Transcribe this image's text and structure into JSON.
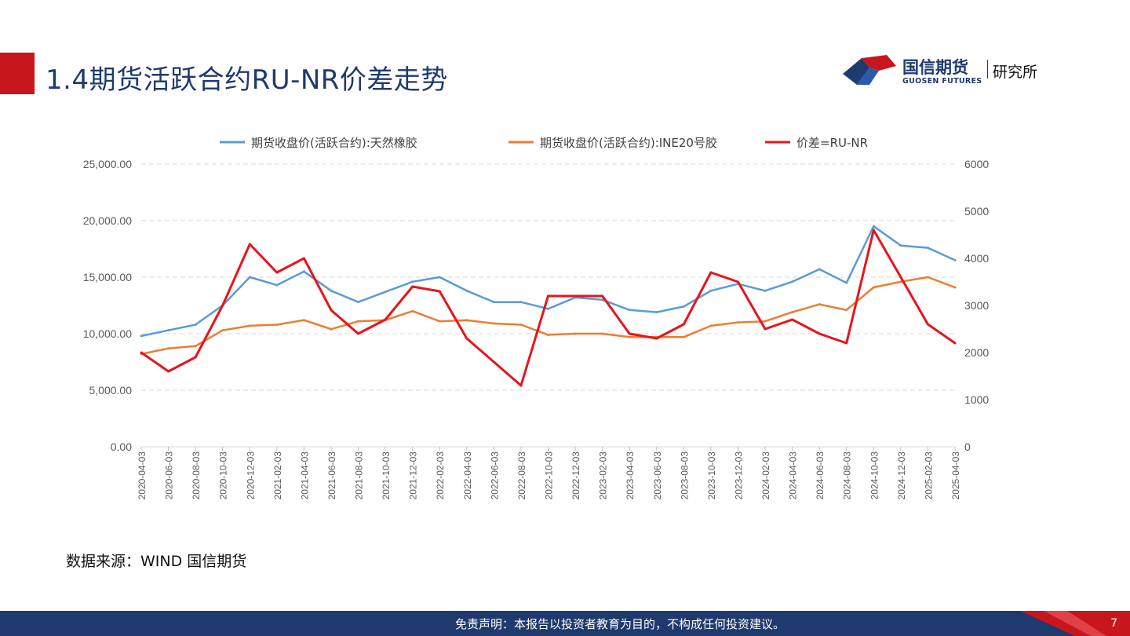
{
  "header": {
    "title": "1.4期货活跃合约RU-NR价差走势",
    "logo_cn": "国信期货",
    "logo_en": "GUOSEN FUTURES",
    "logo_sub": "研究所",
    "accent_red": "#c8161d",
    "brand_blue": "#1f3a6e"
  },
  "source": "数据来源：WIND  国信期货",
  "footer": {
    "disclaimer": "免责声明：本报告以投资者教育为目的，不构成任何投资建议。",
    "page": "7"
  },
  "chart_data": {
    "type": "line",
    "legend_position": "top",
    "grid": true,
    "x": [
      "2020-04-03",
      "2020-06-03",
      "2020-08-03",
      "2020-10-03",
      "2020-12-03",
      "2021-02-03",
      "2021-04-03",
      "2021-06-03",
      "2021-08-03",
      "2021-10-03",
      "2021-12-03",
      "2022-02-03",
      "2022-04-03",
      "2022-06-03",
      "2022-08-03",
      "2022-10-03",
      "2022-12-03",
      "2023-02-03",
      "2023-04-03",
      "2023-06-03",
      "2023-08-03",
      "2023-10-03",
      "2023-12-03",
      "2024-02-03",
      "2024-04-03",
      "2024-06-03",
      "2024-08-03",
      "2024-10-03",
      "2024-12-03",
      "2025-02-03",
      "2025-04-03"
    ],
    "y_left": {
      "ticks": [
        "0.00",
        "5,000.00",
        "10,000.00",
        "15,000.00",
        "20,000.00",
        "25,000.00"
      ],
      "range": [
        0,
        25000
      ]
    },
    "y_right": {
      "ticks": [
        "0",
        "1000",
        "2000",
        "3000",
        "4000",
        "5000",
        "6000"
      ],
      "range": [
        0,
        6000
      ]
    },
    "series": [
      {
        "name": "期货收盘价(活跃合约):天然橡胶",
        "axis": "left",
        "color": "#5b9bd5",
        "values": [
          9800,
          10300,
          10800,
          12500,
          15000,
          14300,
          15500,
          13800,
          12800,
          13700,
          14600,
          15000,
          13800,
          12800,
          12800,
          12200,
          13200,
          13000,
          12100,
          11900,
          12400,
          13800,
          14400,
          13800,
          14600,
          15700,
          14500,
          19500,
          17800,
          17600,
          16500
        ]
      },
      {
        "name": "期货收盘价(活跃合约):INE20号胶",
        "axis": "left",
        "color": "#ed7d31",
        "values": [
          8200,
          8700,
          8900,
          10300,
          10700,
          10800,
          11200,
          10400,
          11100,
          11200,
          12000,
          11100,
          11200,
          10900,
          10800,
          9900,
          10000,
          10000,
          9700,
          9700,
          9700,
          10700,
          11000,
          11100,
          11900,
          12600,
          12100,
          14100,
          14600,
          15000,
          14100
        ]
      },
      {
        "name": "价差=RU-NR",
        "axis": "right",
        "color": "#e8141b",
        "values": [
          2000,
          1600,
          1900,
          3000,
          4300,
          3700,
          4000,
          2900,
          2400,
          2700,
          3400,
          3300,
          2300,
          1800,
          1300,
          3200,
          3200,
          3200,
          2400,
          2300,
          2600,
          3700,
          3500,
          2500,
          2700,
          2400,
          2200,
          4600,
          3600,
          2600,
          2200
        ]
      }
    ]
  }
}
